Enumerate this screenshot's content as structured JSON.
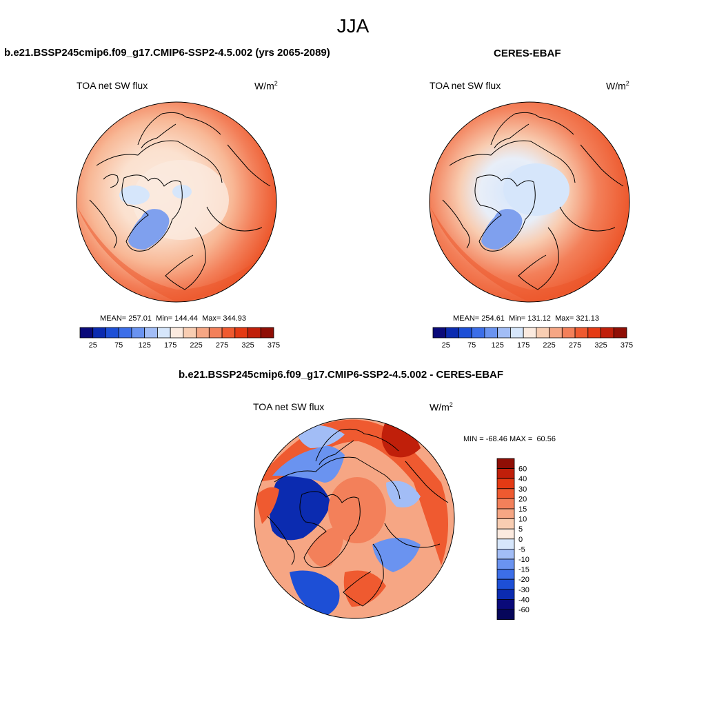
{
  "figure": {
    "title": "JJA"
  },
  "panels": [
    {
      "title": "b.e21.BSSP245cmip6.f09_g17.CMIP6-SSP2-4.5.002 (yrs 2065-2089)",
      "variable": "TOA net SW flux",
      "units": "W/m",
      "units_sup": "2",
      "stats": {
        "mean": "257.01",
        "min": "144.44",
        "max": "344.93"
      }
    },
    {
      "title": "CERES-EBAF",
      "variable": "TOA net SW flux",
      "units": "W/m",
      "units_sup": "2",
      "stats": {
        "mean": "254.61",
        "min": "131.12",
        "max": "321.13"
      }
    },
    {
      "title": "b.e21.BSSP245cmip6.f09_g17.CMIP6-SSP2-4.5.002 - CERES-EBAF",
      "variable": "TOA net SW flux",
      "units": "W/m",
      "units_sup": "2",
      "stats": {
        "min": "-68.46",
        "max": "60.56"
      }
    }
  ],
  "colorbar_abs": {
    "ticks": [
      "25",
      "75",
      "125",
      "175",
      "225",
      "275",
      "325",
      "375"
    ],
    "colors": [
      "#0a0a7a",
      "#0b2bb0",
      "#1d4fd6",
      "#3c6ee8",
      "#6a93f0",
      "#a2bdf6",
      "#d6e6fb",
      "#fbeadf",
      "#f8cdb2",
      "#f6a684",
      "#f3805a",
      "#ef5a30",
      "#e43a14",
      "#c01f0a",
      "#8f0e05"
    ]
  },
  "colorbar_diff": {
    "labels": [
      "60",
      "40",
      "30",
      "20",
      "15",
      "10",
      "5",
      "0",
      "-5",
      "-10",
      "-15",
      "-20",
      "-30",
      "-40",
      "-60"
    ],
    "colors": [
      "#8f0e05",
      "#c01f0a",
      "#e43a14",
      "#ef5a30",
      "#f3805a",
      "#f6a684",
      "#f8cdb2",
      "#fbeadf",
      "#d6e6fb",
      "#a2bdf6",
      "#6a93f0",
      "#3c6ee8",
      "#1d4fd6",
      "#0b2bb0",
      "#0a0a7a",
      "#06065a"
    ]
  },
  "stat_labels": {
    "mean": "MEAN=",
    "min": "Min=",
    "max": "Max=",
    "dmin": "MIN =",
    "dmax": "MAX ="
  }
}
